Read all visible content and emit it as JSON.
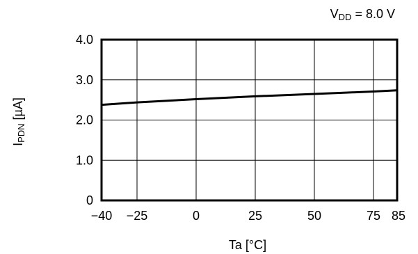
{
  "chart_data": {
    "type": "line",
    "annotation": {
      "main": "V",
      "sub": "DD",
      "rest": " = 8.0 V"
    },
    "xlabel": "Ta [°C]",
    "ylabel": {
      "main": "I",
      "sub": "PDN",
      "rest": " [µA]"
    },
    "xlim": [
      -40,
      85
    ],
    "ylim": [
      0,
      4.0
    ],
    "x_ticks": [
      -40,
      -25,
      0,
      25,
      50,
      75,
      85
    ],
    "x_tick_labels": [
      "−40",
      "−25",
      "0",
      "25",
      "50",
      "75",
      "85"
    ],
    "y_ticks": [
      0,
      1.0,
      2.0,
      3.0,
      4.0
    ],
    "y_tick_labels": [
      "0",
      "1.0",
      "2.0",
      "3.0",
      "4.0"
    ],
    "grid": true,
    "series": [
      {
        "x": [
          -40,
          -25,
          0,
          25,
          50,
          75,
          85
        ],
        "values": [
          2.38,
          2.44,
          2.52,
          2.59,
          2.65,
          2.71,
          2.74
        ]
      }
    ]
  }
}
